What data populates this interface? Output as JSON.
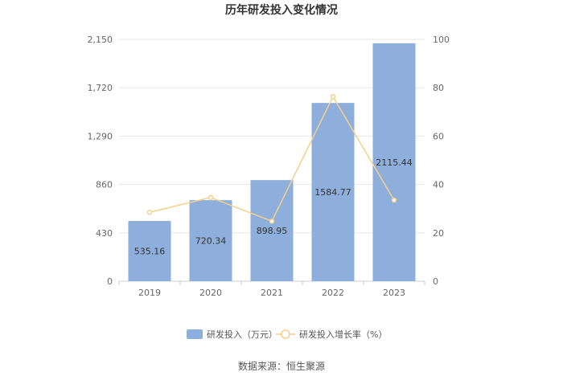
{
  "chart_data": {
    "type": "bar",
    "title": "历年研发投入变化情况",
    "categories": [
      "2019",
      "2020",
      "2021",
      "2022",
      "2023"
    ],
    "series": [
      {
        "name": "研发投入（万元）",
        "type": "bar",
        "axis": "left",
        "color": "#8eaedc",
        "values": [
          535.16,
          720.34,
          898.95,
          1584.77,
          2115.44
        ],
        "value_labels": [
          "535.16",
          "720.34",
          "898.95",
          "1584.77",
          "2115.44"
        ]
      },
      {
        "name": "研发投入增长率（%）",
        "type": "line",
        "axis": "right",
        "color": "#f5d08a",
        "values": [
          28.5,
          34.6,
          24.8,
          76.3,
          33.5
        ]
      }
    ],
    "y_left": {
      "ylim": [
        0,
        2150
      ],
      "ticks": [
        "0",
        "430",
        "860",
        "1,290",
        "1,720",
        "2,150"
      ],
      "tick_values": [
        0,
        430,
        860,
        1290,
        1720,
        2150
      ]
    },
    "y_right": {
      "ylim": [
        0,
        100
      ],
      "ticks": [
        "0",
        "20",
        "40",
        "60",
        "80",
        "100"
      ],
      "tick_values": [
        0,
        20,
        40,
        60,
        80,
        100
      ]
    },
    "grid": true,
    "legend": "bottom-center"
  },
  "source": "数据来源：恒生聚源"
}
